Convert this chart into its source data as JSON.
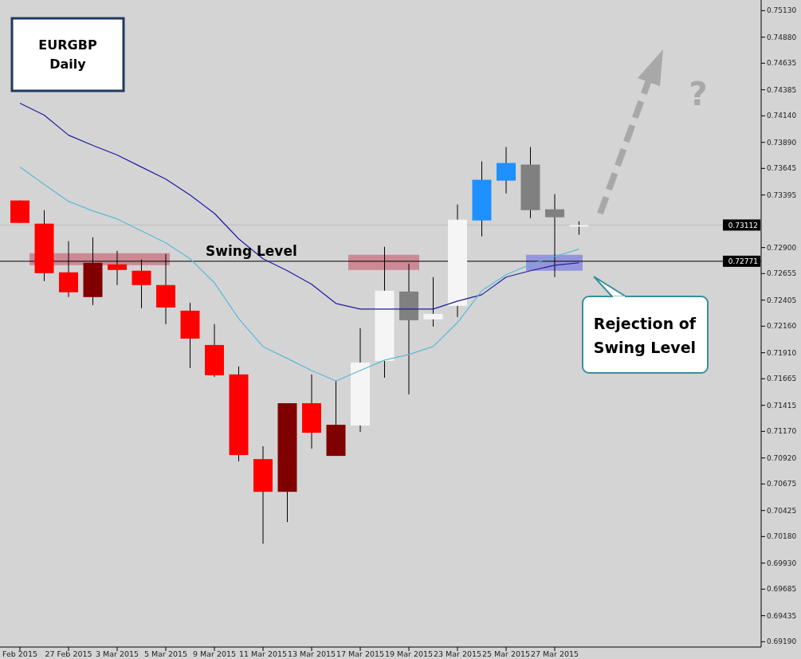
{
  "chart_data": {
    "type": "candlestick",
    "title": "EURGBP Daily",
    "categories": [
      "Feb 2015",
      null,
      "27 Feb 2015",
      null,
      "3 Mar 2015",
      null,
      "5 Mar 2015",
      null,
      "9 Mar 2015",
      null,
      "11 Mar 2015",
      null,
      "13 Mar 2015",
      null,
      "17 Mar 2015",
      null,
      "19 Mar 2015",
      null,
      "23 Mar 2015",
      null,
      "25 Mar 2015",
      null,
      "27 Mar 2015",
      null
    ],
    "ohlc": [
      [
        0.73343,
        0.73343,
        0.73132,
        0.73132
      ],
      [
        0.73125,
        0.73252,
        0.72584,
        0.72659
      ],
      [
        0.72667,
        0.7296,
        0.72434,
        0.72479
      ],
      [
        0.72757,
        0.72997,
        0.72359,
        0.72434
      ],
      [
        0.72742,
        0.72869,
        0.72547,
        0.72689
      ],
      [
        0.72682,
        0.72787,
        0.72329,
        0.72547
      ],
      [
        0.72547,
        0.72839,
        0.72179,
        0.72336
      ],
      [
        0.72306,
        0.72381,
        0.71766,
        0.72043
      ],
      [
        0.71983,
        0.72179,
        0.71683,
        0.71698
      ],
      [
        0.71706,
        0.71781,
        0.70887,
        0.70947
      ],
      [
        0.70909,
        0.7103,
        0.70113,
        0.70601
      ],
      [
        0.71435,
        0.71435,
        0.70316,
        0.70601
      ],
      [
        0.71435,
        0.71706,
        0.71007,
        0.71157
      ],
      [
        0.71232,
        0.71645,
        0.70939,
        0.70939
      ],
      [
        0.71225,
        0.72141,
        0.71165,
        0.71818
      ],
      [
        0.71833,
        0.72907,
        0.71675,
        0.72494
      ],
      [
        0.72486,
        0.72749,
        0.71518,
        0.72216
      ],
      [
        0.72224,
        0.72622,
        0.72156,
        0.72276
      ],
      [
        0.72351,
        0.73305,
        0.72246,
        0.73162
      ],
      [
        0.73155,
        0.73711,
        0.73005,
        0.73538
      ],
      [
        0.7353,
        0.73846,
        0.7341,
        0.73696
      ],
      [
        0.73681,
        0.73846,
        0.73177,
        0.73252
      ],
      [
        0.7326,
        0.73403,
        0.72622,
        0.73185
      ],
      [
        0.73112,
        0.73147,
        0.7302,
        0.73112
      ]
    ],
    "colors": [
      "#ff0000",
      "#ff0000",
      "#ff0000",
      "#800000",
      "#ff0000",
      "#ff0000",
      "#ff0000",
      "#ff0000",
      "#ff0000",
      "#ff0000",
      "#ff0000",
      "#800000",
      "#ff0000",
      "#800000",
      "#f5f5f5",
      "#f5f5f5",
      "#808080",
      "#f5f5f5",
      "#f5f5f5",
      "#1e90ff",
      "#1e90ff",
      "#808080",
      "#808080",
      "#f5f5f5"
    ],
    "series": [
      {
        "type": "line",
        "color": "#1c1ca0",
        "values": [
          0.74259,
          0.74146,
          0.73958,
          0.73861,
          0.73771,
          0.73658,
          0.73545,
          0.73395,
          0.73222,
          0.72982,
          0.72794,
          0.72682,
          0.72554,
          0.72374,
          0.72321,
          0.72321,
          0.72321,
          0.72321,
          0.72396,
          0.72456,
          0.72622,
          0.72682,
          0.72734,
          0.72757
        ]
      },
      {
        "type": "line",
        "color": "#5bb8d8",
        "values": [
          0.73658,
          0.73493,
          0.73335,
          0.73245,
          0.7317,
          0.73057,
          0.72945,
          0.72794,
          0.72569,
          0.72231,
          0.71968,
          0.71856,
          0.71743,
          0.71645,
          0.71743,
          0.71841,
          0.71893,
          0.71968,
          0.72194,
          0.72494,
          0.72644,
          0.72742,
          0.72817,
          0.72885
        ]
      }
    ],
    "ylim": [
      0.6914,
      0.7523
    ],
    "yticks": [
      {
        "value": 0.7513,
        "label": "0.75130"
      },
      {
        "value": 0.7488,
        "label": "0.74880"
      },
      {
        "value": 0.74635,
        "label": "0.74635"
      },
      {
        "value": 0.74385,
        "label": "0.74385"
      },
      {
        "value": 0.7414,
        "label": "0.74140"
      },
      {
        "value": 0.7389,
        "label": "0.73890"
      },
      {
        "value": 0.73645,
        "label": "0.73645"
      },
      {
        "value": 0.73395,
        "label": "0.73395"
      },
      {
        "value": 0.729,
        "label": "0.72900"
      },
      {
        "value": 0.72655,
        "label": "0.72655"
      },
      {
        "value": 0.72405,
        "label": "0.72405"
      },
      {
        "value": 0.7216,
        "label": "0.72160"
      },
      {
        "value": 0.7191,
        "label": "0.71910"
      },
      {
        "value": 0.71665,
        "label": "0.71665"
      },
      {
        "value": 0.71415,
        "label": "0.71415"
      },
      {
        "value": 0.7117,
        "label": "0.71170"
      },
      {
        "value": 0.7092,
        "label": "0.70920"
      },
      {
        "value": 0.70675,
        "label": "0.70675"
      },
      {
        "value": 0.70425,
        "label": "0.70425"
      },
      {
        "value": 0.7018,
        "label": "0.70180"
      },
      {
        "value": 0.6993,
        "label": "0.69930"
      },
      {
        "value": 0.69685,
        "label": "0.69685"
      },
      {
        "value": 0.69435,
        "label": "0.69435"
      },
      {
        "value": 0.6919,
        "label": "0.69190"
      }
    ],
    "ref_lines": [
      {
        "axis": "y",
        "value": 0.73112,
        "label": "0.73112",
        "color": "#bdbdbd"
      },
      {
        "axis": "y",
        "value": 0.72771,
        "label": "0.72771",
        "color": "#000000"
      }
    ],
    "bands": [
      {
        "axis": "y",
        "from": 0.72734,
        "to": 0.72847,
        "color": "#c9707f"
      },
      {
        "axis": "y",
        "from": 0.72689,
        "to": 0.72832,
        "color": "#c9707f"
      },
      {
        "axis": "y",
        "from": 0.72682,
        "to": 0.72832,
        "color": "#8080e0"
      }
    ],
    "annotations": [
      {
        "text": "Swing Level",
        "y": 0.72771
      },
      "Rejection of Swing Level",
      "?"
    ],
    "grid": false
  }
}
